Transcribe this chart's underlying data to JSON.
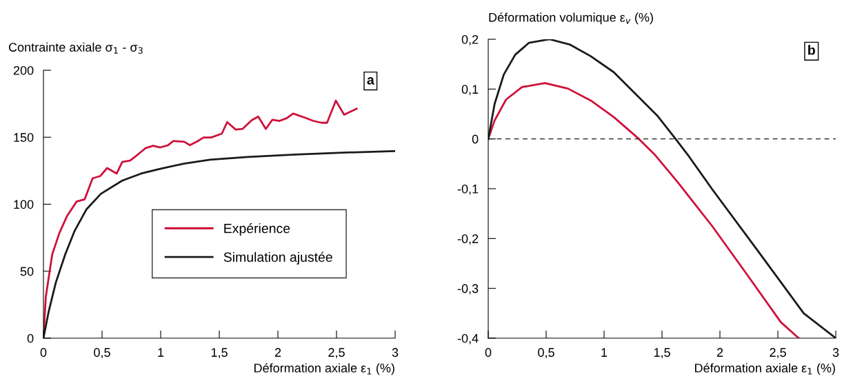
{
  "chart_data": [
    {
      "type": "line",
      "ylabel": "Contrainte axiale σ$_{1}$ - σ$_{3}$",
      "xlabel": "Déformation axiale ε$_{1}$ (%)",
      "annotations": [
        "a"
      ],
      "xlim": [
        0,
        3
      ],
      "ylim": [
        0,
        200
      ],
      "xticks": [
        0,
        {
          "value": 0.5,
          "label": "0,5"
        },
        1,
        {
          "value": 1.5,
          "label": "1,5"
        },
        2,
        {
          "value": 2.5,
          "label": "2,5"
        },
        3
      ],
      "yticks": [
        0,
        50,
        100,
        150,
        200
      ],
      "grid": false,
      "legend": "lower right",
      "line_style": "solid",
      "marker": "none",
      "series": [
        {
          "name": "Expérience",
          "color": "#d0103a",
          "x": [
            0,
            0.02,
            0.075,
            0.136,
            0.202,
            0.283,
            0.352,
            0.419,
            0.486,
            0.543,
            0.625,
            0.672,
            0.739,
            0.804,
            0.87,
            0.935,
            0.996,
            1.063,
            1.107,
            1.202,
            1.249,
            1.31,
            1.366,
            1.431,
            1.522,
            1.567,
            1.64,
            1.698,
            1.775,
            1.832,
            1.897,
            1.953,
            2.014,
            2.075,
            2.13,
            2.221,
            2.302,
            2.372,
            2.419,
            2.494,
            2.565,
            2.672
          ],
          "values": [
            0,
            30.7,
            62.6,
            78.5,
            91.3,
            102,
            103.7,
            119.3,
            121.1,
            127,
            122.9,
            131.6,
            132.6,
            137,
            141.8,
            143.6,
            142.4,
            144,
            147.2,
            146.6,
            144.1,
            146.8,
            149.8,
            149.8,
            152.7,
            161.3,
            155.7,
            156.2,
            162.6,
            165.4,
            156.2,
            163.1,
            162.2,
            164.2,
            167.7,
            164.9,
            162.2,
            160.8,
            160.8,
            177.3,
            166.8,
            171.3
          ]
        },
        {
          "name": "Simulation ajustée",
          "color": "#1a1a1a",
          "x": [
            0,
            0.045,
            0.105,
            0.186,
            0.267,
            0.368,
            0.49,
            0.672,
            0.834,
            0.996,
            1.198,
            1.421,
            1.745,
            2.15,
            2.555,
            3
          ],
          "values": [
            0,
            20,
            41.3,
            62.6,
            80.3,
            96.3,
            107.8,
            117.6,
            122.9,
            126.4,
            130.3,
            133.2,
            135.3,
            137.1,
            138.5,
            139.7
          ]
        }
      ]
    },
    {
      "type": "line",
      "ylabel": "Déformation volumique ε$_{v}$ (%)",
      "xlabel": "Déformation axiale ε$_{1}$ (%)",
      "annotations": [
        "b"
      ],
      "xlim": [
        0,
        3
      ],
      "ylim": [
        -0.4,
        0.2
      ],
      "xticks": [
        0,
        {
          "value": 0.5,
          "label": "0,5"
        },
        1,
        {
          "value": 1.5,
          "label": "1,5"
        },
        2,
        {
          "value": 2.5,
          "label": "2,5"
        },
        3
      ],
      "yticks": [
        {
          "value": -0.4,
          "label": "-0,4"
        },
        {
          "value": -0.3,
          "label": "-0,3"
        },
        {
          "value": -0.2,
          "label": "-0,2"
        },
        {
          "value": -0.1,
          "label": "-0,1"
        },
        0,
        {
          "value": 0.1,
          "label": "0,1"
        },
        {
          "value": 0.2,
          "label": "0,2"
        }
      ],
      "grid": false,
      "line_style": "solid",
      "marker": "none",
      "ref_lines": [
        {
          "axis": "y",
          "value": 0,
          "line_style": "dashed",
          "color": "#1a1a1a"
        }
      ],
      "series": [
        {
          "color": "#d0103a",
          "x": [
            0,
            0.055,
            0.154,
            0.292,
            0.49,
            0.688,
            0.885,
            1.083,
            1.3,
            1.439,
            1.636,
            1.933,
            2.23,
            2.526,
            2.68
          ],
          "values": [
            0,
            0.037,
            0.079,
            0.104,
            0.112,
            0.101,
            0.077,
            0.044,
            0,
            -0.032,
            -0.087,
            -0.175,
            -0.271,
            -0.368,
            -0.4
          ]
        },
        {
          "color": "#1a1a1a",
          "x": [
            0,
            0.055,
            0.134,
            0.233,
            0.352,
            0.53,
            0.708,
            0.885,
            1.083,
            1.281,
            1.458,
            1.617,
            1.735,
            1.933,
            2.328,
            2.723,
            3
          ],
          "values": [
            0,
            0.07,
            0.129,
            0.169,
            0.193,
            0.2,
            0.189,
            0.166,
            0.134,
            0.088,
            0.047,
            0,
            -0.036,
            -0.101,
            -0.225,
            -0.35,
            -0.4
          ]
        }
      ]
    }
  ]
}
